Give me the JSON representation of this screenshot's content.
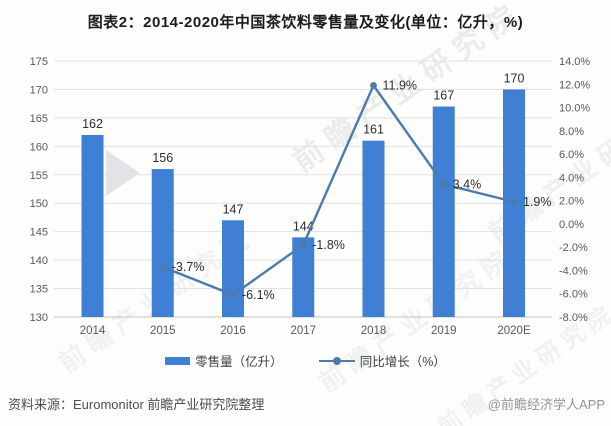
{
  "title": "图表2：2014-2020年中国茶饮料零售量及变化(单位：亿升，%)",
  "watermark": {
    "text": "前瞻产业研究院"
  },
  "footer": {
    "source": "资料来源：Euromonitor 前瞻产业研究院整理",
    "credit": "@前瞻经济学人APP"
  },
  "chart_data": {
    "type": "bar",
    "combo": "bar+line dual-axis",
    "categories": [
      "2014",
      "2015",
      "2016",
      "2017",
      "2018",
      "2019",
      "2020E"
    ],
    "series": [
      {
        "name": "零售量（亿升）",
        "type": "bar",
        "axis": "left",
        "color": "#3f80d5",
        "values": [
          162,
          156,
          147,
          144,
          161,
          167,
          170
        ],
        "labels": [
          "162",
          "156",
          "147",
          "144",
          "161",
          "167",
          "170"
        ]
      },
      {
        "name": "同比增长（%）",
        "type": "line",
        "axis": "right",
        "color": "#4e79ad",
        "values": [
          null,
          -3.7,
          -6.1,
          -1.8,
          11.9,
          3.4,
          1.9
        ],
        "labels": [
          "",
          "-3.7%",
          "-6.1%",
          "-1.8%",
          "11.9%",
          "3.4%",
          "1.9%"
        ]
      }
    ],
    "left_axis": {
      "min": 130,
      "max": 175,
      "step": 5,
      "ticks": [
        "130",
        "135",
        "140",
        "145",
        "150",
        "155",
        "160",
        "165",
        "170",
        "175"
      ]
    },
    "right_axis": {
      "min": -8,
      "max": 14,
      "step": 2,
      "ticks": [
        "-8.0%",
        "-6.0%",
        "-4.0%",
        "-2.0%",
        "0.0%",
        "2.0%",
        "4.0%",
        "6.0%",
        "8.0%",
        "10.0%",
        "12.0%",
        "14.0%"
      ]
    },
    "grid": true,
    "legend_position": "bottom",
    "colors": {
      "grid": "#e1e1e1",
      "axis_line": "#c2c2c2",
      "tick_text": "#595959",
      "data_label": "#2d2d2d"
    }
  }
}
